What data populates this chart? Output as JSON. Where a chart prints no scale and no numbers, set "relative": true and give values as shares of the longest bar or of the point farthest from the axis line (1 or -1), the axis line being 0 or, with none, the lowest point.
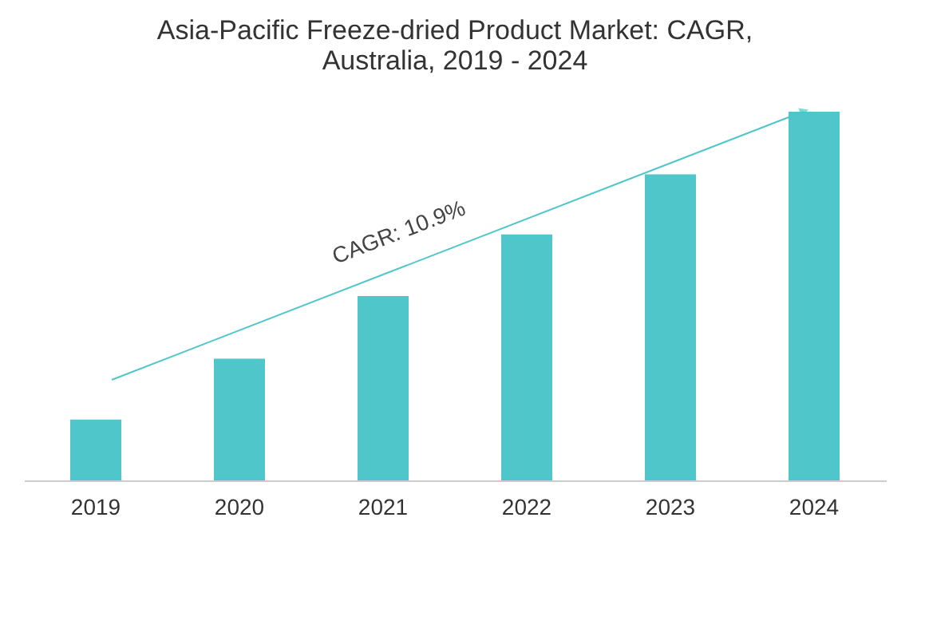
{
  "chart_data": {
    "type": "bar",
    "title": [
      "Asia-Pacific Freeze-dried Product Market: CAGR,",
      "Australia, 2019 - 2024"
    ],
    "categories": [
      "2019",
      "2020",
      "2021",
      "2022",
      "2023",
      "2024"
    ],
    "values": [
      0.165,
      0.33,
      0.5,
      0.667,
      0.83,
      1
    ],
    "color": "#4fc6c9",
    "relative": true,
    "grid": false,
    "annotations": [
      "CAGR: 10.9%"
    ]
  }
}
